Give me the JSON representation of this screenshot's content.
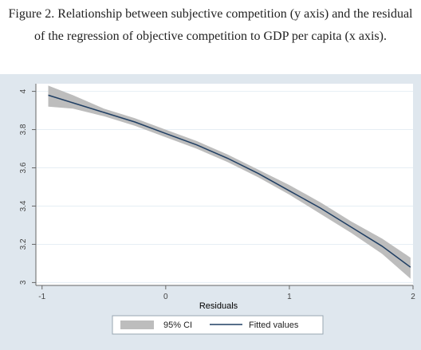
{
  "figure_caption": "Figure 2. Relationship between subjective competition (y axis) and the residual of the regression of objective competition to GDP per capita (x axis).",
  "colors": {
    "outer_background": "#dfe7ee",
    "plot_background": "#ffffff",
    "ci_band": "#bdbdbd",
    "fitted_line": "#1f3e63",
    "grid": "#e6eef4",
    "axis_text": "#444444"
  },
  "chart_data": {
    "type": "line",
    "title": "",
    "xlabel": "Residuals",
    "ylabel": "",
    "xlim": [
      -1.05,
      2.0
    ],
    "ylim": [
      2.985,
      4.04
    ],
    "xticks": [
      -1,
      0,
      1,
      2
    ],
    "xtick_labels": [
      "-1",
      "0",
      "1",
      "2"
    ],
    "yticks": [
      3.0,
      3.2,
      3.4,
      3.6,
      3.8,
      4.0
    ],
    "ytick_labels": [
      "3",
      "3.2",
      "3.4",
      "3.6",
      "3.8",
      "4"
    ],
    "grid": true,
    "legend_position": "bottom",
    "legend": [
      "95% CI",
      "Fitted values"
    ],
    "x": [
      -0.95,
      -0.75,
      -0.5,
      -0.25,
      0.0,
      0.25,
      0.5,
      0.75,
      1.0,
      1.25,
      1.5,
      1.75,
      1.98
    ],
    "series": [
      {
        "name": "Fitted values",
        "values": [
          3.98,
          3.94,
          3.89,
          3.84,
          3.78,
          3.72,
          3.65,
          3.57,
          3.48,
          3.39,
          3.29,
          3.19,
          3.08
        ]
      },
      {
        "name": "95% CI",
        "lower": [
          3.92,
          3.91,
          3.87,
          3.82,
          3.76,
          3.7,
          3.63,
          3.55,
          3.46,
          3.36,
          3.26,
          3.15,
          3.02
        ],
        "upper": [
          4.03,
          3.98,
          3.91,
          3.86,
          3.8,
          3.74,
          3.67,
          3.59,
          3.51,
          3.42,
          3.32,
          3.23,
          3.13
        ]
      }
    ]
  }
}
